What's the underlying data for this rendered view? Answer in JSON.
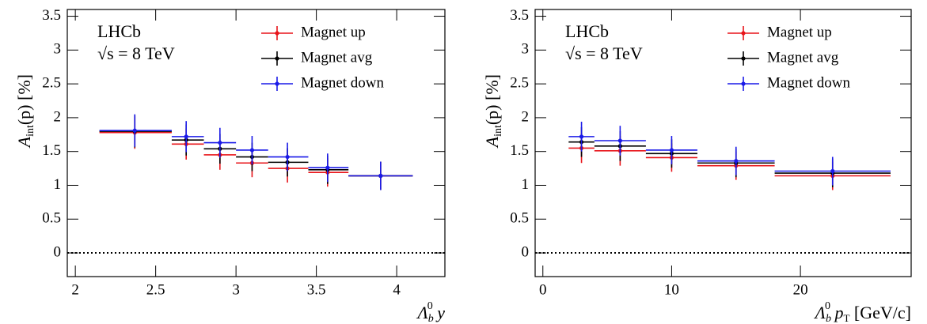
{
  "chart_data": [
    {
      "type": "errorbar",
      "experiment": "LHCb",
      "energy": "√s = 8 TeV",
      "y_label": [
        "A",
        "int",
        "(p) [%]"
      ],
      "x_label": [
        "Λ",
        "b",
        "0",
        " y"
      ],
      "xlim": [
        1.95,
        4.3
      ],
      "xticks": [
        2,
        2.5,
        3,
        3.5,
        4
      ],
      "ylim": [
        -0.35,
        3.6
      ],
      "yticks": [
        0,
        0.5,
        1,
        1.5,
        2,
        2.5,
        3,
        3.5
      ],
      "hline": 0,
      "legend": "upper right",
      "series": [
        {
          "name": "Magnet up",
          "color": "#e8141a",
          "x": [
            2.37,
            2.69,
            2.9,
            3.1,
            3.32,
            3.57,
            3.9
          ],
          "x_bins": [
            [
              2.15,
              2.6
            ],
            [
              2.6,
              2.8
            ],
            [
              2.8,
              3.0
            ],
            [
              3.0,
              3.2
            ],
            [
              3.2,
              3.45
            ],
            [
              3.45,
              3.7
            ],
            [
              3.7,
              4.1
            ]
          ],
          "values": [
            1.78,
            1.61,
            1.45,
            1.33,
            1.25,
            1.19,
            1.14
          ],
          "errors": [
            0.24,
            0.23,
            0.22,
            0.21,
            0.21,
            0.21,
            0.21
          ]
        },
        {
          "name": "Magnet avg",
          "color": "#000000",
          "x": [
            2.37,
            2.69,
            2.9,
            3.1,
            3.32,
            3.57,
            3.9
          ],
          "x_bins": [
            [
              2.15,
              2.6
            ],
            [
              2.6,
              2.8
            ],
            [
              2.8,
              3.0
            ],
            [
              3.0,
              3.2
            ],
            [
              3.2,
              3.45
            ],
            [
              3.45,
              3.7
            ],
            [
              3.7,
              4.1
            ]
          ],
          "values": [
            1.8,
            1.67,
            1.54,
            1.42,
            1.34,
            1.23,
            1.14
          ],
          "errors": [
            0.24,
            0.23,
            0.22,
            0.21,
            0.21,
            0.21,
            0.21
          ]
        },
        {
          "name": "Magnet down",
          "color": "#1a1ae8",
          "x": [
            2.37,
            2.69,
            2.9,
            3.1,
            3.32,
            3.57,
            3.9
          ],
          "x_bins": [
            [
              2.15,
              2.6
            ],
            [
              2.6,
              2.8
            ],
            [
              2.8,
              3.0
            ],
            [
              3.0,
              3.2
            ],
            [
              3.2,
              3.45
            ],
            [
              3.45,
              3.7
            ],
            [
              3.7,
              4.1
            ]
          ],
          "values": [
            1.81,
            1.72,
            1.63,
            1.52,
            1.42,
            1.26,
            1.14
          ],
          "errors": [
            0.24,
            0.23,
            0.22,
            0.21,
            0.21,
            0.21,
            0.21
          ]
        }
      ]
    },
    {
      "type": "errorbar",
      "experiment": "LHCb",
      "energy": "√s = 8 TeV",
      "y_label": [
        "A",
        "int",
        "(p) [%]"
      ],
      "x_label": [
        "Λ",
        "b",
        "0",
        " p",
        "T",
        " [GeV/c]"
      ],
      "xlim": [
        -0.6,
        28.6
      ],
      "xticks": [
        0,
        10,
        20
      ],
      "ylim": [
        -0.35,
        3.6
      ],
      "yticks": [
        0,
        0.5,
        1,
        1.5,
        2,
        2.5,
        3,
        3.5
      ],
      "hline": 0,
      "legend": "upper right",
      "series": [
        {
          "name": "Magnet up",
          "color": "#e8141a",
          "x": [
            3,
            6,
            10,
            15,
            22.5
          ],
          "x_bins": [
            [
              2,
              4
            ],
            [
              4,
              8
            ],
            [
              8,
              12
            ],
            [
              12,
              18
            ],
            [
              18,
              27
            ]
          ],
          "values": [
            1.55,
            1.51,
            1.41,
            1.29,
            1.14
          ],
          "errors": [
            0.22,
            0.22,
            0.21,
            0.21,
            0.21
          ]
        },
        {
          "name": "Magnet avg",
          "color": "#000000",
          "x": [
            3,
            6,
            10,
            15,
            22.5
          ],
          "x_bins": [
            [
              2,
              4
            ],
            [
              4,
              8
            ],
            [
              8,
              12
            ],
            [
              12,
              18
            ],
            [
              18,
              27
            ]
          ],
          "values": [
            1.64,
            1.58,
            1.47,
            1.33,
            1.18
          ],
          "errors": [
            0.22,
            0.22,
            0.21,
            0.21,
            0.21
          ]
        },
        {
          "name": "Magnet down",
          "color": "#1a1ae8",
          "x": [
            3,
            6,
            10,
            15,
            22.5
          ],
          "x_bins": [
            [
              2,
              4
            ],
            [
              4,
              8
            ],
            [
              8,
              12
            ],
            [
              12,
              18
            ],
            [
              18,
              27
            ]
          ],
          "values": [
            1.72,
            1.66,
            1.52,
            1.36,
            1.21
          ],
          "errors": [
            0.22,
            0.22,
            0.21,
            0.21,
            0.21
          ]
        }
      ]
    }
  ]
}
